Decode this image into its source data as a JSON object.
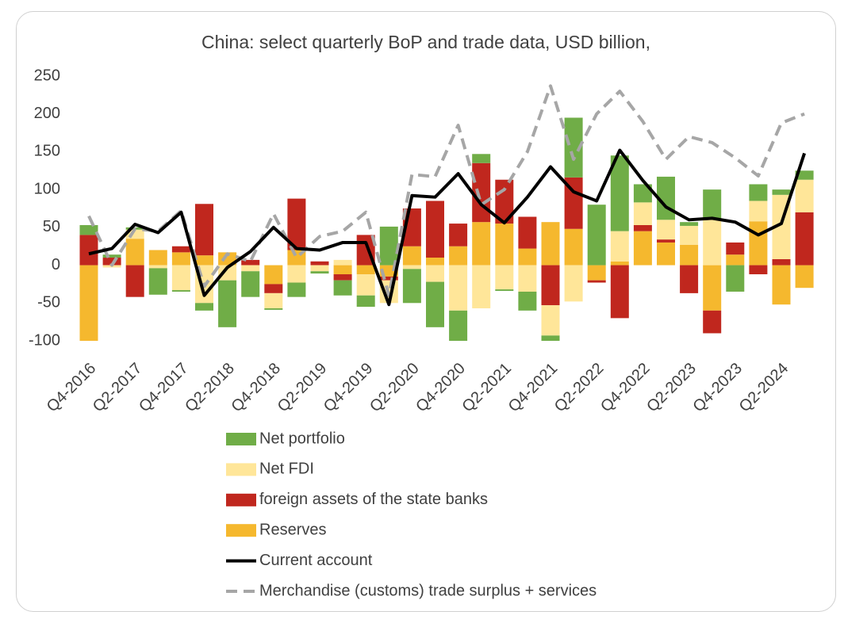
{
  "chart_data": {
    "type": "bar",
    "title": "China: select quarterly BoP and trade data, USD billion,",
    "categories": [
      "Q4-2016",
      null,
      "Q2-2017",
      null,
      "Q4-2017",
      null,
      "Q2-2018",
      null,
      "Q4-2018",
      null,
      "Q2-2019",
      null,
      "Q4-2019",
      null,
      "Q2-2020",
      null,
      "Q4-2020",
      null,
      "Q2-2021",
      null,
      "Q4-2021",
      null,
      "Q2-2022",
      null,
      "Q4-2022",
      null,
      "Q2-2023",
      null,
      "Q4-2023",
      null,
      "Q2-2024",
      null
    ],
    "ylim": [
      -100,
      250
    ],
    "yticks": [
      -100,
      -50,
      0,
      50,
      100,
      150,
      200,
      250
    ],
    "grid": false,
    "stacked": true,
    "legend": "bottom",
    "series": [
      {
        "name": "Net portfolio",
        "type": "bar",
        "color": "#70ad47",
        "values": [
          13,
          4,
          3,
          -35,
          -2,
          -10,
          -62,
          -34,
          -2,
          -19,
          -3,
          -20,
          -15,
          51,
          -45,
          -60,
          -40,
          12,
          -2,
          -25,
          -7,
          79,
          80,
          100,
          24,
          57,
          5,
          40,
          -35,
          22,
          7,
          12
        ]
      },
      {
        "name": "Net FDI",
        "type": "bar",
        "color": "#ffe699",
        "values": [
          0,
          -3,
          12,
          -4,
          -33,
          -50,
          -20,
          -8,
          -20,
          -23,
          -8,
          7,
          -28,
          -30,
          -5,
          -22,
          -60,
          -57,
          -32,
          -35,
          -40,
          -48,
          0,
          40,
          30,
          26,
          25,
          60,
          0,
          27,
          85,
          43
        ]
      },
      {
        "name": "foreign assets of the state banks",
        "type": "bar",
        "color": "#c0271e",
        "values": [
          40,
          10,
          -42,
          0,
          8,
          68,
          0,
          7,
          -12,
          68,
          5,
          -8,
          40,
          -5,
          50,
          75,
          30,
          78,
          58,
          42,
          -53,
          68,
          -3,
          -70,
          8,
          4,
          -37,
          -30,
          16,
          -12,
          8,
          70
        ]
      },
      {
        "name": "Reserves",
        "type": "bar",
        "color": "#f5b82e",
        "values": [
          -100,
          0,
          35,
          20,
          17,
          13,
          17,
          0,
          -25,
          20,
          0,
          -12,
          -12,
          -15,
          25,
          10,
          25,
          57,
          55,
          22,
          57,
          48,
          -20,
          5,
          45,
          30,
          27,
          -60,
          14,
          58,
          -52,
          -30
        ]
      },
      {
        "name": "Current account",
        "type": "line",
        "color": "#000000",
        "dashed": false,
        "values": [
          15,
          22,
          54,
          43,
          70,
          -40,
          -3,
          18,
          50,
          22,
          20,
          30,
          30,
          -52,
          92,
          90,
          121,
          80,
          56,
          90,
          130,
          97,
          85,
          152,
          112,
          77,
          60,
          62,
          57,
          40,
          55,
          148
        ]
      },
      {
        "name": "Merchandise (customs) trade surplus + services",
        "type": "line",
        "color": "#a6a6a6",
        "dashed": true,
        "values": [
          65,
          0,
          48,
          45,
          72,
          -28,
          15,
          5,
          68,
          10,
          38,
          45,
          70,
          -40,
          120,
          117,
          185,
          80,
          100,
          150,
          237,
          140,
          200,
          230,
          190,
          140,
          170,
          162,
          142,
          118,
          188,
          200
        ]
      }
    ]
  }
}
